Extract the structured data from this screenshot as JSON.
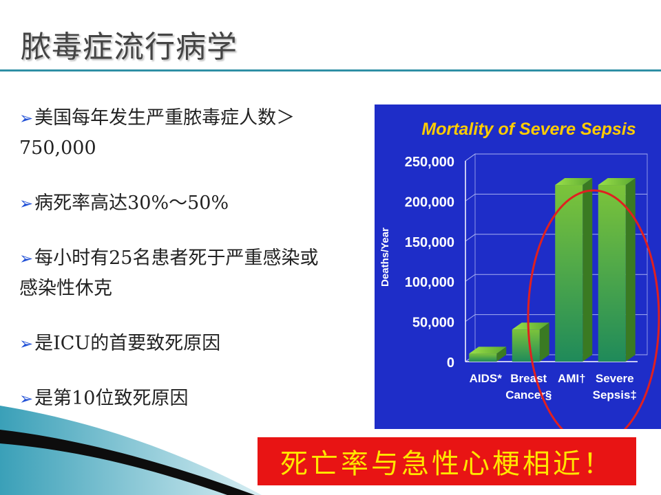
{
  "slide": {
    "title": "脓毒症流行病学",
    "bullets": [
      "美国每年发生严重脓毒症人数＞750,000",
      "病死率高达30%～50%",
      "每小时有25名患者死于严重感染或感染性休克",
      "是ICU的首要致死原因",
      "是第10位致死原因"
    ],
    "callout": "死亡率与急性心梗相近！"
  },
  "colors": {
    "panel": "#1e2dc8",
    "title_text": "#ffcc00",
    "callout_bg": "#e81414",
    "callout_text": "#ffe600",
    "ellipse": "#e02020"
  },
  "chart_data": {
    "type": "bar",
    "title": "Mortality of Severe Sepsis",
    "ylabel": "Deaths/Year",
    "ylim": [
      0,
      250000
    ],
    "yticks": [
      "0",
      "50,000",
      "100,000",
      "150,000",
      "200,000",
      "250,000"
    ],
    "categories": [
      "AIDS*",
      "Breast Cancer§",
      "AMI†",
      "Severe Sepsis‡"
    ],
    "category_lines": [
      [
        "AIDS*"
      ],
      [
        "Breast",
        "Cancer§"
      ],
      [
        "AMI†"
      ],
      [
        "Severe",
        "Sepsis‡"
      ]
    ],
    "values": [
      10000,
      40000,
      220000,
      220000
    ],
    "grid": true
  }
}
